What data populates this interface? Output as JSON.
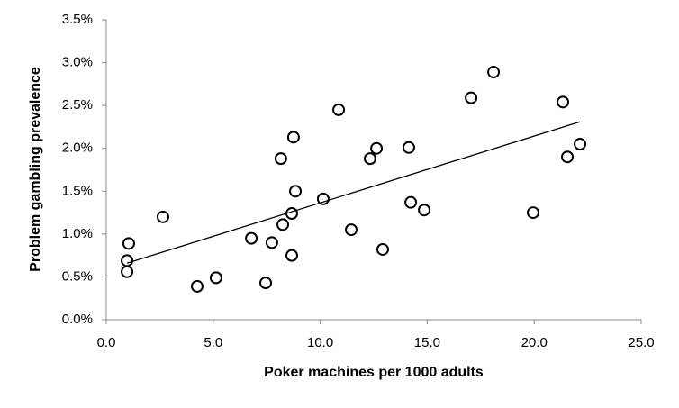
{
  "chart_data": {
    "type": "scatter",
    "x_label": "Poker machines per 1000 adults",
    "y_label": "Problem gambling prevalence",
    "xlim": [
      0,
      25
    ],
    "xticks": [
      {
        "value": 0,
        "label": "0.0"
      },
      {
        "value": 5,
        "label": "5.0"
      },
      {
        "value": 10,
        "label": "10.0"
      },
      {
        "value": 15,
        "label": "15.0"
      },
      {
        "value": 20,
        "label": "20.0"
      },
      {
        "value": 25,
        "label": "25.0"
      }
    ],
    "ylim": [
      0,
      3.5
    ],
    "yticks": [
      {
        "value": 0,
        "label": "0.0%"
      },
      {
        "value": 0.5,
        "label": "0.5%"
      },
      {
        "value": 1,
        "label": "1.0%"
      },
      {
        "value": 1.5,
        "label": "1.5%"
      },
      {
        "value": 2,
        "label": "2.0%"
      },
      {
        "value": 2.5,
        "label": "2.5%"
      },
      {
        "value": 3,
        "label": "3.0%"
      },
      {
        "value": 3.5,
        "label": "3.5%"
      }
    ],
    "grid": false,
    "color": "#000000",
    "x": [
      0.97,
      0.97,
      1.05,
      2.65,
      4.25,
      5.13,
      6.78,
      7.45,
      7.74,
      8.16,
      8.25,
      8.67,
      8.67,
      8.75,
      8.84,
      10.14,
      10.86,
      11.45,
      12.33,
      12.63,
      12.92,
      14.14,
      14.23,
      14.86,
      17.05,
      18.1,
      19.95,
      21.34,
      21.55,
      22.14
    ],
    "values": [
      0.69,
      0.56,
      0.89,
      1.2,
      0.39,
      0.49,
      0.95,
      0.43,
      0.9,
      1.88,
      1.11,
      1.24,
      0.75,
      2.13,
      1.5,
      1.41,
      2.45,
      1.05,
      1.88,
      2.0,
      0.82,
      2.01,
      1.37,
      1.28,
      2.59,
      2.89,
      1.25,
      2.54,
      1.9,
      2.05
    ],
    "trendline": {
      "x": [
        0.97,
        22.14
      ],
      "y": [
        0.66,
        2.31
      ]
    }
  }
}
